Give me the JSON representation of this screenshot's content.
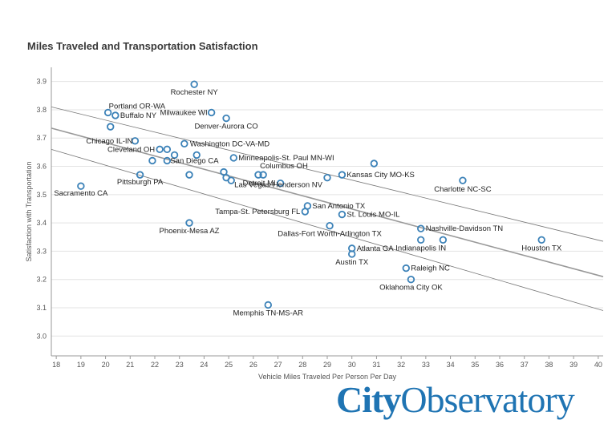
{
  "title": "Miles Traveled and Transportation Satisfaction",
  "logo": {
    "bold_part": "City",
    "regular_part": "Observatory"
  },
  "colors": {
    "point": "#3c82b8",
    "trend": "#999999",
    "band": "#777777",
    "grid": "#e3e3e3",
    "axis": "#999999"
  },
  "chart_data": {
    "type": "scatter",
    "title": "Miles Traveled and Transportation Satisfaction",
    "xlabel": "Vehicle Miles Traveled Per Person Per Day",
    "ylabel": "Satisfaction with Transportation",
    "xlim": [
      17.8,
      40.2
    ],
    "ylim": [
      2.93,
      3.95
    ],
    "xticks": [
      18,
      19,
      20,
      21,
      22,
      23,
      24,
      25,
      26,
      27,
      28,
      29,
      30,
      31,
      32,
      33,
      34,
      35,
      36,
      37,
      38,
      39,
      40
    ],
    "yticks": [
      3.0,
      3.1,
      3.2,
      3.3,
      3.4,
      3.5,
      3.6,
      3.7,
      3.8,
      3.9
    ],
    "grid": "horizontal",
    "trend_line": {
      "x": [
        17.8,
        40.2
      ],
      "y": [
        3.735,
        3.21
      ]
    },
    "confidence_band": {
      "upper": {
        "x": [
          17.8,
          40.2
        ],
        "y": [
          3.81,
          3.335
        ]
      },
      "lower": {
        "x": [
          17.8,
          40.2
        ],
        "y": [
          3.66,
          3.09
        ]
      }
    },
    "points": [
      {
        "x": 19.0,
        "y": 3.53,
        "label": "Sacramento CA"
      },
      {
        "x": 20.1,
        "y": 3.79,
        "label": "Portland OR-WA"
      },
      {
        "x": 20.4,
        "y": 3.78,
        "label": "Buffalo NY"
      },
      {
        "x": 20.2,
        "y": 3.74,
        "label": ""
      },
      {
        "x": 21.2,
        "y": 3.69,
        "label": "Chicago IL-IN"
      },
      {
        "x": 22.2,
        "y": 3.66,
        "label": "Cleveland OH"
      },
      {
        "x": 22.5,
        "y": 3.66,
        "label": ""
      },
      {
        "x": 22.8,
        "y": 3.64,
        "label": ""
      },
      {
        "x": 21.9,
        "y": 3.62,
        "label": ""
      },
      {
        "x": 22.5,
        "y": 3.62,
        "label": "San Diego CA"
      },
      {
        "x": 21.4,
        "y": 3.57,
        "label": "Pittsburgh PA"
      },
      {
        "x": 23.6,
        "y": 3.89,
        "label": "Rochester NY"
      },
      {
        "x": 24.3,
        "y": 3.79,
        "label": "Milwaukee WI"
      },
      {
        "x": 24.9,
        "y": 3.77,
        "label": "Denver-Aurora CO"
      },
      {
        "x": 23.2,
        "y": 3.68,
        "label": "Washington DC-VA-MD"
      },
      {
        "x": 23.7,
        "y": 3.64,
        "label": ""
      },
      {
        "x": 23.4,
        "y": 3.57,
        "label": ""
      },
      {
        "x": 25.2,
        "y": 3.63,
        "label": "Minneapolis-St. Paul MN-WI"
      },
      {
        "x": 24.8,
        "y": 3.58,
        "label": ""
      },
      {
        "x": 24.9,
        "y": 3.56,
        "label": ""
      },
      {
        "x": 25.1,
        "y": 3.55,
        "label": ""
      },
      {
        "x": 26.2,
        "y": 3.57,
        "label": ""
      },
      {
        "x": 26.4,
        "y": 3.57,
        "label": "Columbus OH"
      },
      {
        "x": 27.1,
        "y": 3.54,
        "label": "Detroit MI"
      },
      {
        "x": 29.0,
        "y": 3.56,
        "label": "Las Vegas-Henderson NV"
      },
      {
        "x": 29.6,
        "y": 3.57,
        "label": "Kansas City MO-KS"
      },
      {
        "x": 30.9,
        "y": 3.61,
        "label": ""
      },
      {
        "x": 34.5,
        "y": 3.55,
        "label": "Charlotte NC-SC"
      },
      {
        "x": 28.2,
        "y": 3.46,
        "label": "San Antonio TX"
      },
      {
        "x": 28.1,
        "y": 3.44,
        "label": "Tampa-St. Petersburg FL"
      },
      {
        "x": 29.6,
        "y": 3.43,
        "label": "St. Louis MO-IL"
      },
      {
        "x": 29.1,
        "y": 3.39,
        "label": "Dallas-Fort Worth-Arlington TX"
      },
      {
        "x": 23.4,
        "y": 3.4,
        "label": "Phoenix-Mesa AZ"
      },
      {
        "x": 32.8,
        "y": 3.38,
        "label": "Nashville-Davidson TN"
      },
      {
        "x": 32.8,
        "y": 3.34,
        "label": "Indianapolis IN"
      },
      {
        "x": 33.7,
        "y": 3.34,
        "label": ""
      },
      {
        "x": 37.7,
        "y": 3.34,
        "label": "Houston TX"
      },
      {
        "x": 30.0,
        "y": 3.31,
        "label": "Atlanta GA"
      },
      {
        "x": 30.0,
        "y": 3.29,
        "label": "Austin TX"
      },
      {
        "x": 32.2,
        "y": 3.24,
        "label": "Raleigh NC"
      },
      {
        "x": 32.4,
        "y": 3.2,
        "label": "Oklahoma City OK"
      },
      {
        "x": 26.6,
        "y": 3.11,
        "label": "Memphis TN-MS-AR"
      }
    ]
  }
}
